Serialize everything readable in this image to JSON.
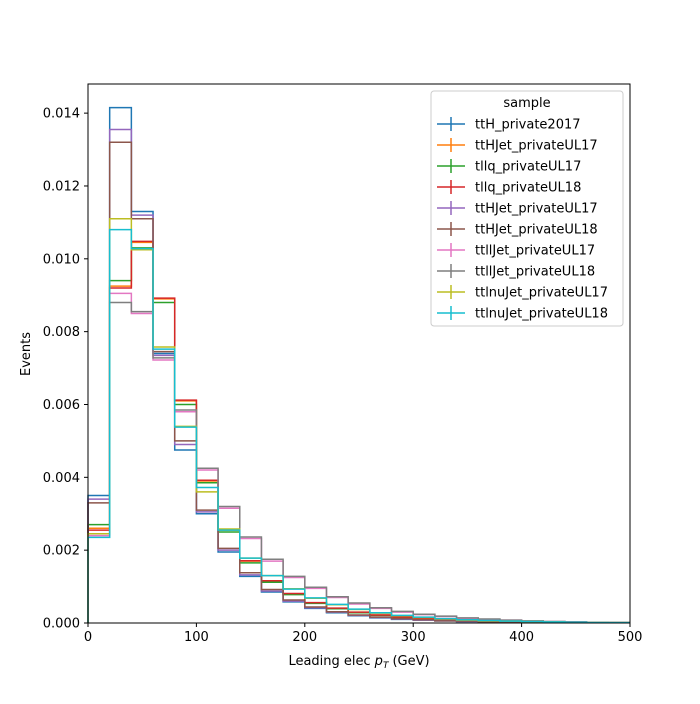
{
  "chart_data": {
    "type": "step-histogram",
    "title": "",
    "xlabel": "Leading elec",
    "xlabel_symbol": "p",
    "xlabel_subscript": "T",
    "xlabel_unit": "(GeV)",
    "ylabel": "Events",
    "xlim": [
      0,
      500
    ],
    "ylim": [
      0,
      0.0148
    ],
    "xticks": [
      0,
      100,
      200,
      300,
      400,
      500
    ],
    "xtick_labels": [
      "0",
      "100",
      "200",
      "300",
      "400",
      "500"
    ],
    "yticks": [
      0,
      0.002,
      0.004,
      0.006,
      0.008,
      0.01,
      0.012,
      0.014
    ],
    "ytick_labels": [
      "0.000",
      "0.002",
      "0.004",
      "0.006",
      "0.008",
      "0.010",
      "0.012",
      "0.014"
    ],
    "grid": false,
    "legend": {
      "title": "sample",
      "placement": "top-right"
    },
    "bin_edges": [
      0,
      20,
      40,
      60,
      80,
      100,
      120,
      140,
      160,
      180,
      200,
      220,
      240,
      260,
      280,
      300,
      320,
      340,
      360,
      380,
      400,
      420,
      440,
      460,
      480,
      500
    ],
    "series": [
      {
        "name": "ttH_private2017",
        "color": "#1f77b4",
        "values": [
          0.0035,
          0.01415,
          0.0113,
          0.0074,
          0.00475,
          0.003,
          0.00195,
          0.00128,
          0.00085,
          0.00058,
          0.0004,
          0.00028,
          0.0002,
          0.00014,
          0.0001,
          8e-05,
          6e-05,
          4e-05,
          3e-05,
          2e-05,
          2e-05,
          1e-05,
          1e-05,
          1e-05,
          1e-05
        ]
      },
      {
        "name": "ttHJet_privateUL17",
        "color": "#ff7f0e",
        "values": [
          0.0026,
          0.00925,
          0.01045,
          0.0089,
          0.0061,
          0.0039,
          0.00255,
          0.0017,
          0.00115,
          0.0008,
          0.00055,
          0.0004,
          0.00029,
          0.00022,
          0.00016,
          0.00012,
          9e-05,
          7e-05,
          5e-05,
          4e-05,
          3e-05,
          2e-05,
          2e-05,
          1e-05,
          1e-05
        ]
      },
      {
        "name": "tllq_privateUL17",
        "color": "#2ca02c",
        "values": [
          0.0027,
          0.0094,
          0.0103,
          0.0088,
          0.006,
          0.00385,
          0.0025,
          0.00165,
          0.00112,
          0.00078,
          0.00054,
          0.00039,
          0.00028,
          0.00021,
          0.00015,
          0.00011,
          9e-05,
          7e-05,
          5e-05,
          4e-05,
          3e-05,
          2e-05,
          2e-05,
          1e-05,
          1e-05
        ]
      },
      {
        "name": "tllq_privateUL18",
        "color": "#d62728",
        "values": [
          0.00255,
          0.0092,
          0.01048,
          0.00892,
          0.00612,
          0.00392,
          0.00256,
          0.00171,
          0.00116,
          0.00081,
          0.00056,
          0.00041,
          0.0003,
          0.00022,
          0.00016,
          0.00012,
          9e-05,
          7e-05,
          5e-05,
          4e-05,
          3e-05,
          2e-05,
          2e-05,
          1e-05,
          1e-05
        ]
      },
      {
        "name": "ttHJet_privateUL17",
        "color": "#9467bd",
        "values": [
          0.0034,
          0.01355,
          0.0112,
          0.00735,
          0.0049,
          0.00305,
          0.002,
          0.00132,
          0.00088,
          0.0006,
          0.00042,
          0.0003,
          0.00021,
          0.00015,
          0.00011,
          8e-05,
          6e-05,
          4e-05,
          3e-05,
          2e-05,
          2e-05,
          1e-05,
          1e-05,
          1e-05,
          1e-05
        ]
      },
      {
        "name": "ttHJet_privateUL18",
        "color": "#8c564b",
        "values": [
          0.0033,
          0.0132,
          0.0111,
          0.00745,
          0.005,
          0.0031,
          0.00205,
          0.00138,
          0.00092,
          0.00063,
          0.00044,
          0.00031,
          0.00022,
          0.00016,
          0.00012,
          9e-05,
          6e-05,
          5e-05,
          3e-05,
          2e-05,
          2e-05,
          1e-05,
          1e-05,
          1e-05,
          1e-05
        ]
      },
      {
        "name": "ttllJet_privateUL17",
        "color": "#e377c2",
        "values": [
          0.0024,
          0.00905,
          0.0085,
          0.00722,
          0.0058,
          0.0042,
          0.00315,
          0.00232,
          0.0017,
          0.00125,
          0.00095,
          0.0007,
          0.00052,
          0.0004,
          0.0003,
          0.00023,
          0.00018,
          0.00013,
          0.0001,
          8e-05,
          6e-05,
          4e-05,
          3e-05,
          2e-05,
          1e-05
        ]
      },
      {
        "name": "ttllJet_privateUL18",
        "color": "#7f7f7f",
        "values": [
          0.00245,
          0.0088,
          0.00855,
          0.00728,
          0.00585,
          0.00425,
          0.0032,
          0.00236,
          0.00175,
          0.00128,
          0.00098,
          0.00072,
          0.00055,
          0.00042,
          0.00032,
          0.00024,
          0.00019,
          0.00014,
          0.00011,
          8e-05,
          6e-05,
          4e-05,
          3e-05,
          2e-05,
          1e-05
        ]
      },
      {
        "name": "ttlnuJet_privateUL17",
        "color": "#bcbd22",
        "values": [
          0.00245,
          0.0111,
          0.01025,
          0.00758,
          0.0054,
          0.0036,
          0.00258,
          0.00178,
          0.0013,
          0.00094,
          0.00068,
          0.0005,
          0.00037,
          0.00027,
          0.0002,
          0.00015,
          0.00011,
          8e-05,
          6e-05,
          5e-05,
          4e-05,
          3e-05,
          2e-05,
          1e-05,
          1e-05
        ]
      },
      {
        "name": "ttlnuJet_privateUL18",
        "color": "#17becf",
        "values": [
          0.00235,
          0.0108,
          0.01028,
          0.00752,
          0.00538,
          0.00372,
          0.00255,
          0.00178,
          0.0013,
          0.00093,
          0.00069,
          0.00051,
          0.00038,
          0.00028,
          0.00021,
          0.00016,
          0.00012,
          9e-05,
          7e-05,
          5e-05,
          4e-05,
          3e-05,
          2e-05,
          1e-05,
          1e-05
        ]
      }
    ]
  }
}
